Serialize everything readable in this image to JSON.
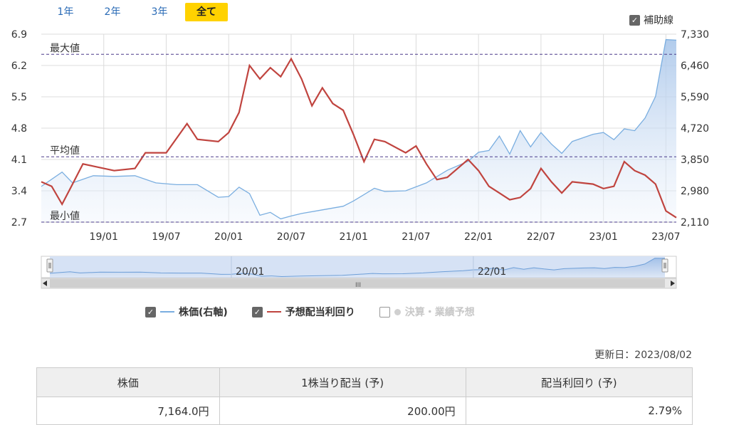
{
  "range_tabs": [
    {
      "label": "1年",
      "active": false
    },
    {
      "label": "2年",
      "active": false
    },
    {
      "label": "3年",
      "active": false
    },
    {
      "label": "全て",
      "active": true
    }
  ],
  "aux_lines_toggle": {
    "label": "補助線",
    "checked": true
  },
  "chart_data": {
    "type": "line",
    "left_axis": {
      "ticks": [
        "6.9",
        "6.2",
        "5.5",
        "4.8",
        "4.1",
        "3.4",
        "2.7"
      ],
      "min": 2.7,
      "max": 6.9
    },
    "right_axis": {
      "ticks": [
        "7,330",
        "6,460",
        "5,590",
        "4,720",
        "3,850",
        "2,980",
        "2,110"
      ],
      "min": 2110,
      "max": 7330
    },
    "x_ticks": [
      "19/01",
      "19/07",
      "20/01",
      "20/07",
      "21/01",
      "21/07",
      "22/01",
      "22/07",
      "23/01",
      "23/07"
    ],
    "x_range": [
      "2018/07",
      "2023/08"
    ],
    "reference_lines": [
      {
        "label": "最大値",
        "value": 6.45
      },
      {
        "label": "平均値",
        "value": 4.16
      },
      {
        "label": "最小値",
        "value": 2.7
      }
    ],
    "series": [
      {
        "name": "株価(右軸)",
        "axis": "right",
        "color": "#7aaee0",
        "fill": true,
        "x": [
          "2018/07",
          "2018/09",
          "2018/10",
          "2018/12",
          "2019/02",
          "2019/04",
          "2019/06",
          "2019/08",
          "2019/10",
          "2019/12",
          "2020/01",
          "2020/02",
          "2020/03",
          "2020/04",
          "2020/05",
          "2020/06",
          "2020/07",
          "2020/08",
          "2020/10",
          "2020/12",
          "2021/01",
          "2021/03",
          "2021/04",
          "2021/06",
          "2021/08",
          "2021/10",
          "2021/12",
          "2022/01",
          "2022/02",
          "2022/03",
          "2022/04",
          "2022/05",
          "2022/06",
          "2022/07",
          "2022/08",
          "2022/09",
          "2022/10",
          "2022/12",
          "2023/01",
          "2023/02",
          "2023/03",
          "2023/04",
          "2023/05",
          "2023/06",
          "2023/07",
          "2023/08"
        ],
        "values": [
          3100,
          3500,
          3200,
          3400,
          3380,
          3400,
          3200,
          3150,
          3150,
          2800,
          2820,
          3080,
          2900,
          2300,
          2380,
          2200,
          2280,
          2350,
          2450,
          2550,
          2700,
          3050,
          2960,
          2980,
          3200,
          3550,
          3800,
          4050,
          4100,
          4500,
          4000,
          4650,
          4200,
          4600,
          4280,
          4020,
          4350,
          4550,
          4600,
          4400,
          4700,
          4650,
          5000,
          5600,
          7180,
          7164
        ]
      },
      {
        "name": "予想配当利回り",
        "axis": "left",
        "color": "#c0443f",
        "fill": false,
        "x": [
          "2018/07",
          "2018/08",
          "2018/09",
          "2018/10",
          "2018/11",
          "2018/12",
          "2019/02",
          "2019/04",
          "2019/05",
          "2019/07",
          "2019/09",
          "2019/10",
          "2019/12",
          "2020/01",
          "2020/02",
          "2020/03",
          "2020/04",
          "2020/05",
          "2020/06",
          "2020/07",
          "2020/08",
          "2020/09",
          "2020/10",
          "2020/11",
          "2020/12",
          "2021/01",
          "2021/02",
          "2021/03",
          "2021/04",
          "2021/06",
          "2021/07",
          "2021/08",
          "2021/09",
          "2021/10",
          "2021/12",
          "2022/01",
          "2022/02",
          "2022/03",
          "2022/04",
          "2022/05",
          "2022/06",
          "2022/07",
          "2022/08",
          "2022/09",
          "2022/10",
          "2022/12",
          "2023/01",
          "2023/02",
          "2023/03",
          "2023/04",
          "2023/05",
          "2023/06",
          "2023/07",
          "2023/08"
        ],
        "values": [
          3.6,
          3.5,
          3.1,
          3.55,
          4.0,
          3.95,
          3.85,
          3.9,
          4.25,
          4.25,
          4.9,
          4.55,
          4.5,
          4.7,
          5.15,
          6.2,
          5.9,
          6.15,
          5.95,
          6.35,
          5.9,
          5.3,
          5.7,
          5.35,
          5.2,
          4.65,
          4.05,
          4.55,
          4.5,
          4.25,
          4.4,
          4.0,
          3.65,
          3.7,
          4.1,
          3.85,
          3.5,
          3.35,
          3.2,
          3.25,
          3.45,
          3.9,
          3.6,
          3.35,
          3.6,
          3.55,
          3.45,
          3.5,
          4.05,
          3.85,
          3.75,
          3.55,
          2.95,
          2.8
        ]
      }
    ],
    "grid": true,
    "legend": "bottom"
  },
  "navigator": {
    "labels": [
      "20/01",
      "22/01"
    ],
    "scroll_grip": "III"
  },
  "legend": [
    {
      "label": "株価(右軸)",
      "checked": true,
      "color": "#7aaee0",
      "enabled": true
    },
    {
      "label": "予想配当利回り",
      "checked": true,
      "color": "#c0443f",
      "enabled": true
    },
    {
      "label": "決算・業績予想",
      "checked": false,
      "color": "#d0d0d0",
      "enabled": false
    }
  ],
  "updated": "更新日：2023/08/02",
  "summary": {
    "headers": [
      "株価",
      "1株当り配当 (予)",
      "配当利回り (予)"
    ],
    "values": [
      "7,164.0円",
      "200.00円",
      "2.79%"
    ]
  }
}
